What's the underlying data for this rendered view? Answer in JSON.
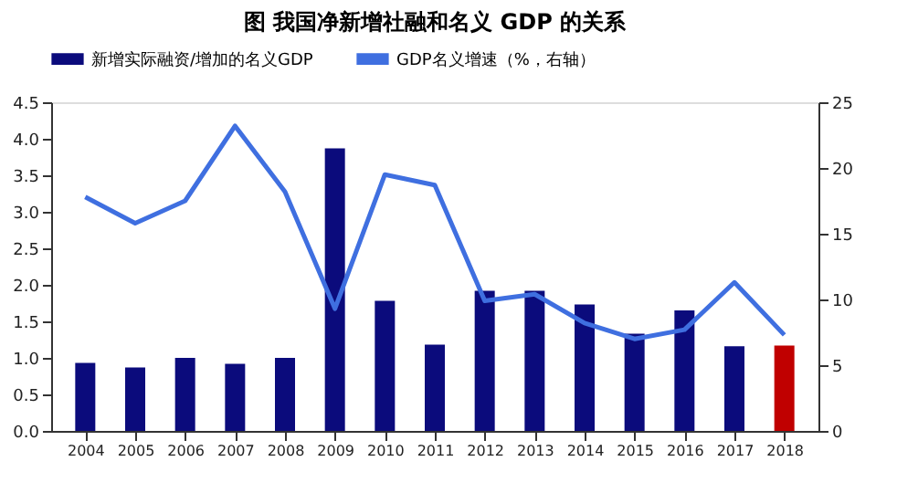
{
  "chart_data": {
    "type": "bar",
    "title": "图  我国净新增社融和名义 GDP 的关系",
    "categories": [
      "2004",
      "2005",
      "2006",
      "2007",
      "2008",
      "2009",
      "2010",
      "2011",
      "2012",
      "2013",
      "2014",
      "2015",
      "2016",
      "2017",
      "2018"
    ],
    "series": [
      {
        "name": "新增实际融资/增加的名义GDP",
        "type": "bar",
        "color": "#0b0b7c",
        "colors": [
          "#0b0b7c",
          "#0b0b7c",
          "#0b0b7c",
          "#0b0b7c",
          "#0b0b7c",
          "#0b0b7c",
          "#0b0b7c",
          "#0b0b7c",
          "#0b0b7c",
          "#0b0b7c",
          "#0b0b7c",
          "#0b0b7c",
          "#0b0b7c",
          "#0b0b7c",
          "#c00000"
        ],
        "values": [
          0.93,
          0.87,
          1.0,
          0.92,
          1.0,
          3.87,
          1.78,
          1.18,
          1.92,
          1.92,
          1.73,
          1.33,
          1.65,
          1.16,
          1.17
        ]
      },
      {
        "name": "GDP名义增速（%，右轴）",
        "type": "line",
        "axis": "y2",
        "color": "#3f6fe0",
        "values": [
          17.8,
          15.8,
          17.5,
          23.2,
          18.2,
          9.3,
          19.5,
          18.7,
          9.9,
          10.4,
          8.2,
          7.0,
          7.7,
          11.3,
          7.3
        ]
      }
    ],
    "ylim": [
      0,
      4.5
    ],
    "yticks": [
      {
        "value": 0,
        "label": "0.0"
      },
      {
        "value": 0.5,
        "label": "0.5"
      },
      {
        "value": 1,
        "label": "1.0"
      },
      {
        "value": 1.5,
        "label": "1.5"
      },
      {
        "value": 2,
        "label": "2.0"
      },
      {
        "value": 2.5,
        "label": "2.5"
      },
      {
        "value": 3,
        "label": "3.0"
      },
      {
        "value": 3.5,
        "label": "3.5"
      },
      {
        "value": 4,
        "label": "4.0"
      },
      {
        "value": 4.5,
        "label": "4.5"
      }
    ],
    "y2lim": [
      0,
      25
    ],
    "y2ticks": [
      0,
      5,
      10,
      15,
      20,
      25
    ],
    "grid": false,
    "legend": "top",
    "marker": "none",
    "line_style": "solid"
  }
}
